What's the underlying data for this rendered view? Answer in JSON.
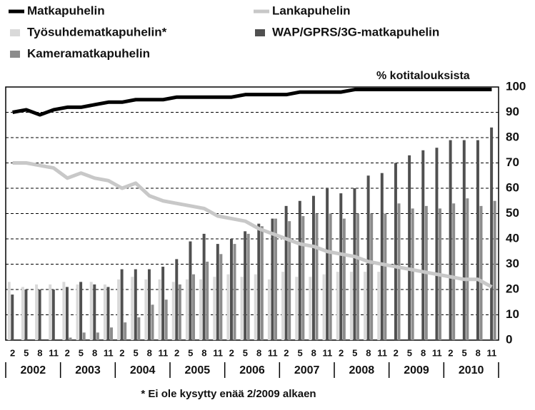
{
  "chart_data": {
    "type": "bar",
    "y_axis_label": "% kotitalouksista",
    "note": "* Ei ole kysytty enää 2/2009 alkaen",
    "categories": [
      "2",
      "5",
      "8",
      "11",
      "2",
      "5",
      "8",
      "11",
      "2",
      "5",
      "8",
      "11",
      "2",
      "5",
      "8",
      "11",
      "2",
      "5",
      "8",
      "11",
      "2",
      "5",
      "8",
      "11",
      "2",
      "5",
      "8",
      "11",
      "2",
      "5",
      "8",
      "11",
      "2",
      "5",
      "8",
      "11"
    ],
    "years": [
      "2002",
      "2003",
      "2004",
      "2005",
      "2006",
      "2007",
      "2008",
      "2009",
      "2010"
    ],
    "ylim": [
      0,
      100
    ],
    "yticks": [
      0,
      10,
      20,
      30,
      40,
      50,
      60,
      70,
      80,
      90,
      100
    ],
    "grid": true,
    "series": [
      {
        "name": "Matkapuhelin",
        "type": "line",
        "color": "#000000",
        "values": [
          90,
          91,
          89,
          91,
          92,
          92,
          93,
          94,
          94,
          95,
          95,
          95,
          96,
          96,
          96,
          96,
          96,
          97,
          97,
          97,
          97,
          98,
          98,
          98,
          98,
          99,
          99,
          99,
          99,
          99,
          99,
          99,
          99,
          99,
          99,
          99
        ]
      },
      {
        "name": "Lankapuhelin",
        "type": "line",
        "color": "#c8c8c8",
        "values": [
          70,
          70,
          69,
          68,
          64,
          66,
          64,
          63,
          60,
          62,
          57,
          55,
          54,
          53,
          52,
          49,
          48,
          47,
          44,
          42,
          40,
          38,
          37,
          35,
          34,
          33,
          31,
          30,
          29,
          28,
          27,
          26,
          25,
          24,
          24,
          21
        ]
      },
      {
        "name": "Työsuhdematkapuhelin*",
        "type": "bar",
        "color": "#d9d9d9",
        "values": [
          23,
          21,
          22,
          22,
          23,
          22,
          23,
          22,
          24,
          25,
          24,
          24,
          23,
          24,
          24,
          25,
          26,
          25,
          26,
          24,
          27,
          25,
          25,
          26,
          27,
          27,
          27,
          27,
          null,
          null,
          null,
          null,
          null,
          null,
          null,
          null
        ]
      },
      {
        "name": "WAP/GPRS/3G-matkapuhelin",
        "type": "bar",
        "color": "#505050",
        "values": [
          18,
          20,
          20,
          20,
          21,
          23,
          22,
          21,
          28,
          28,
          28,
          29,
          32,
          39,
          42,
          38,
          40,
          43,
          46,
          48,
          53,
          55,
          57,
          60,
          58,
          60,
          65,
          66,
          70,
          73,
          75,
          76,
          79,
          79,
          79,
          84
        ]
      },
      {
        "name": "Kameramatkapuhelin",
        "type": "bar",
        "color": "#8c8c8c",
        "values": [
          null,
          null,
          null,
          null,
          1,
          3,
          3,
          5,
          7,
          9,
          14,
          16,
          22,
          26,
          31,
          34,
          38,
          42,
          45,
          48,
          47,
          49,
          50,
          50,
          48,
          50,
          50,
          50,
          54,
          52,
          53,
          52,
          54,
          56,
          53,
          55
        ]
      }
    ]
  }
}
